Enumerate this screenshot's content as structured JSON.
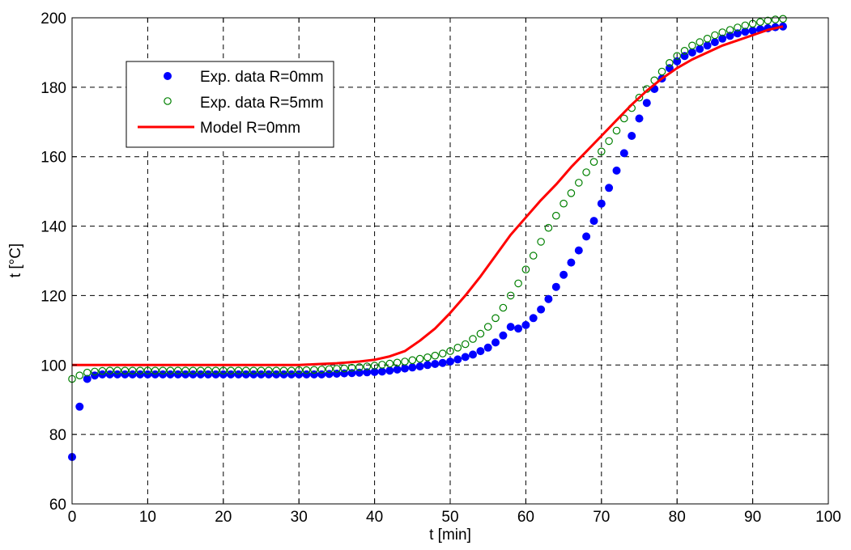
{
  "chart_data": {
    "type": "scatter",
    "title": "",
    "xlabel": "t [min]",
    "ylabel": "t [°C]",
    "xlim": [
      0,
      100
    ],
    "ylim": [
      60,
      200
    ],
    "xticks": [
      0,
      10,
      20,
      30,
      40,
      50,
      60,
      70,
      80,
      90,
      100
    ],
    "yticks": [
      60,
      80,
      100,
      120,
      140,
      160,
      180,
      200
    ],
    "grid": true,
    "legend_position": "upper-left",
    "series": [
      {
        "name": "Exp. data R=0mm",
        "marker": "filled-circle",
        "color": "#0000ff",
        "x": [
          0,
          1,
          2,
          3,
          4,
          5,
          6,
          7,
          8,
          9,
          10,
          11,
          12,
          13,
          14,
          15,
          16,
          17,
          18,
          19,
          20,
          21,
          22,
          23,
          24,
          25,
          26,
          27,
          28,
          29,
          30,
          31,
          32,
          33,
          34,
          35,
          36,
          37,
          38,
          39,
          40,
          41,
          42,
          43,
          44,
          45,
          46,
          47,
          48,
          49,
          50,
          51,
          52,
          53,
          54,
          55,
          56,
          57,
          58,
          59,
          60,
          61,
          62,
          63,
          64,
          65,
          66,
          67,
          68,
          69,
          70,
          71,
          72,
          73,
          74,
          75,
          76,
          77,
          78,
          79,
          80,
          81,
          82,
          83,
          84,
          85,
          86,
          87,
          88,
          89,
          90,
          91,
          92,
          93,
          94
        ],
        "y": [
          73.5,
          88,
          96,
          97,
          97.3,
          97.3,
          97.3,
          97.3,
          97.3,
          97.3,
          97.3,
          97.3,
          97.3,
          97.3,
          97.3,
          97.3,
          97.3,
          97.3,
          97.3,
          97.3,
          97.3,
          97.3,
          97.3,
          97.3,
          97.3,
          97.3,
          97.3,
          97.3,
          97.3,
          97.3,
          97.3,
          97.3,
          97.3,
          97.3,
          97.4,
          97.5,
          97.6,
          97.7,
          97.8,
          97.9,
          98,
          98.1,
          98.4,
          98.7,
          99,
          99.3,
          99.6,
          100,
          100.3,
          100.6,
          101,
          101.6,
          102.3,
          103,
          104,
          105,
          106.5,
          108.5,
          111,
          110.5,
          111.5,
          113.5,
          116,
          119,
          122.5,
          126,
          129.5,
          133,
          137,
          141.5,
          146.5,
          151,
          156,
          161,
          166,
          171,
          175.5,
          179.5,
          182.5,
          185.5,
          187.5,
          189,
          190,
          191,
          192,
          193,
          194,
          194.8,
          195.5,
          196,
          196.3,
          196.7,
          197,
          197.3,
          197.5
        ]
      },
      {
        "name": "Exp. data R=5mm",
        "marker": "open-circle",
        "color": "#008000",
        "x": [
          0,
          1,
          2,
          3,
          4,
          5,
          6,
          7,
          8,
          9,
          10,
          11,
          12,
          13,
          14,
          15,
          16,
          17,
          18,
          19,
          20,
          21,
          22,
          23,
          24,
          25,
          26,
          27,
          28,
          29,
          30,
          31,
          32,
          33,
          34,
          35,
          36,
          37,
          38,
          39,
          40,
          41,
          42,
          43,
          44,
          45,
          46,
          47,
          48,
          49,
          50,
          51,
          52,
          53,
          54,
          55,
          56,
          57,
          58,
          59,
          60,
          61,
          62,
          63,
          64,
          65,
          66,
          67,
          68,
          69,
          70,
          71,
          72,
          73,
          74,
          75,
          76,
          77,
          78,
          79,
          80,
          81,
          82,
          83,
          84,
          85,
          86,
          87,
          88,
          89,
          90,
          91,
          92,
          93,
          94
        ],
        "y": [
          96,
          97,
          97.8,
          98.1,
          98.3,
          98.4,
          98.4,
          98.4,
          98.4,
          98.4,
          98.4,
          98.4,
          98.4,
          98.4,
          98.4,
          98.4,
          98.4,
          98.4,
          98.4,
          98.4,
          98.4,
          98.4,
          98.4,
          98.4,
          98.4,
          98.4,
          98.4,
          98.4,
          98.4,
          98.4,
          98.5,
          98.5,
          98.6,
          98.7,
          98.8,
          98.9,
          99,
          99.2,
          99.4,
          99.6,
          99.8,
          100.1,
          100.4,
          100.7,
          101,
          101.4,
          101.8,
          102.2,
          102.7,
          103.3,
          104,
          105,
          106,
          107.5,
          109,
          111,
          113.5,
          116.5,
          120,
          123.5,
          127.5,
          131.5,
          135.5,
          139.5,
          143,
          146.5,
          149.5,
          152.5,
          155.5,
          158.5,
          161.5,
          164.5,
          167.5,
          171,
          174,
          177,
          179.5,
          182,
          184.5,
          187,
          189,
          190.5,
          192,
          193,
          194,
          195,
          195.8,
          196.5,
          197.2,
          197.8,
          198.3,
          198.8,
          199.2,
          199.5,
          199.7
        ]
      },
      {
        "name": "Model R=0mm",
        "marker": "line",
        "color": "#ff0000",
        "x": [
          0,
          30,
          32,
          35,
          38,
          40,
          42,
          44,
          46,
          48,
          50,
          52,
          54,
          56,
          58,
          60,
          62,
          64,
          66,
          68,
          70,
          72,
          74,
          76,
          78,
          80,
          82,
          84,
          86,
          88,
          90,
          92,
          94
        ],
        "y": [
          100,
          100,
          100.2,
          100.5,
          101,
          101.5,
          102.5,
          104,
          107,
          110.5,
          115,
          120,
          125.5,
          131.5,
          137.5,
          142.5,
          147.5,
          152,
          157,
          161.5,
          166,
          170.5,
          175,
          179,
          182.5,
          185.5,
          188,
          190,
          192,
          193.5,
          195,
          196.5,
          197.5
        ]
      }
    ]
  }
}
